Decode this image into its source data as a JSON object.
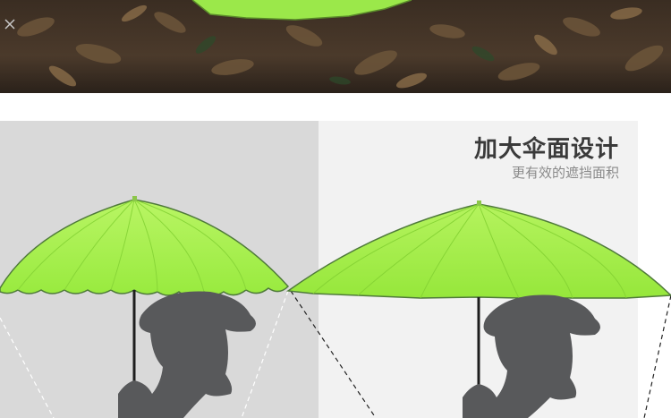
{
  "banner": {
    "title": "加大伞面设计",
    "subtitle": "更有效的遮挡面积"
  },
  "colors": {
    "canopy_green": "#a6f04e",
    "canopy_green_dark": "#7fd12e",
    "silhouette": "#58595b",
    "left_panel_bg": "#d9d9d9",
    "right_panel_bg": "#f2f2f2"
  },
  "scene": {
    "top_photo": "forest-floor-with-leaves",
    "left_umbrella": "wavy-edge-folding-umbrella",
    "right_umbrella": "large-canopy-umbrella"
  }
}
